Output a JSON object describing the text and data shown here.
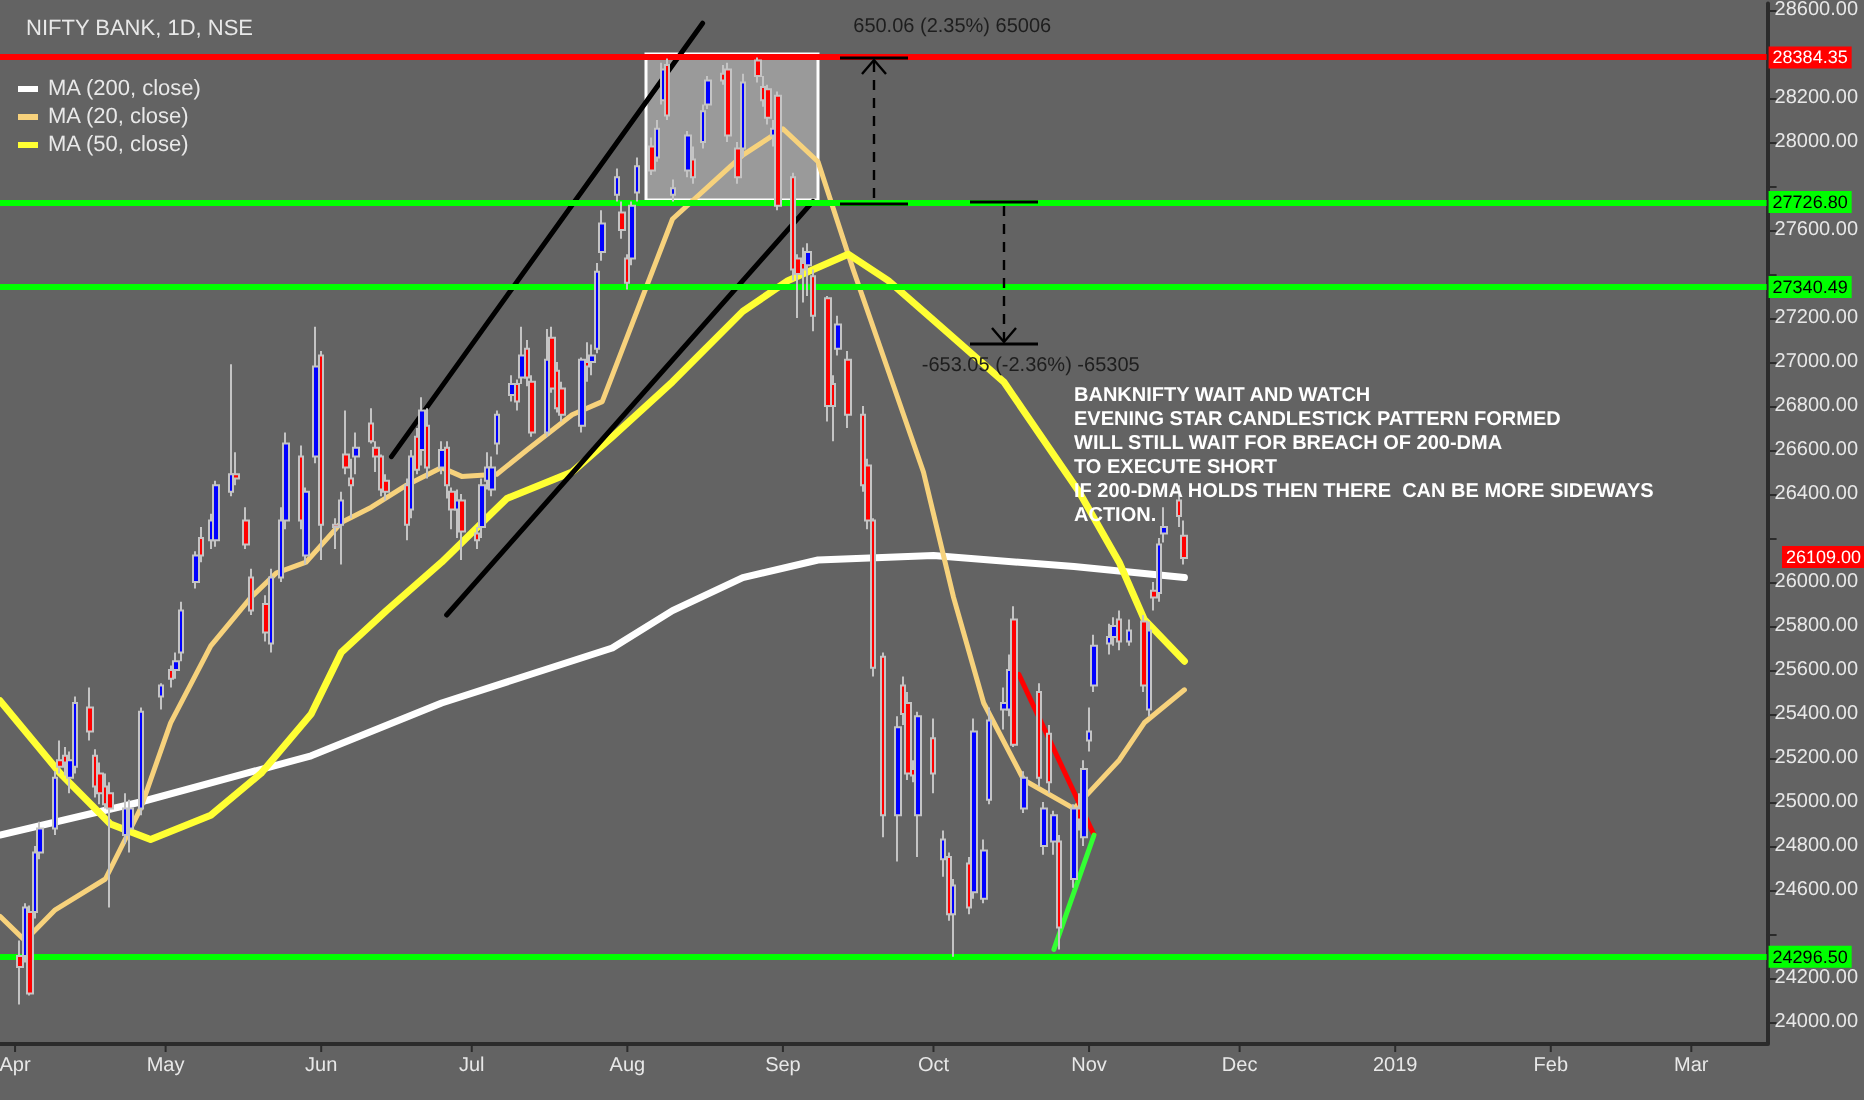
{
  "chart_data": {
    "type": "candlestick",
    "title": "NIFTY BANK, 1D, NSE",
    "legend": "top left",
    "marker": "none",
    "xlim": [
      "2018-03-29",
      "2019-03-16"
    ],
    "xticks": [
      {
        "value": "2018-04-01",
        "label": "Apr"
      },
      {
        "value": "2018-05-01",
        "label": "May"
      },
      {
        "value": "2018-06-01",
        "label": "Jun"
      },
      {
        "value": "2018-07-01",
        "label": "Jul"
      },
      {
        "value": "2018-08-01",
        "label": "Aug"
      },
      {
        "value": "2018-09-01",
        "label": "Sep"
      },
      {
        "value": "2018-10-01",
        "label": "Oct"
      },
      {
        "value": "2018-11-01",
        "label": "Nov"
      },
      {
        "value": "2018-12-01",
        "label": "Dec"
      },
      {
        "value": "2019-01-01",
        "label": "2019"
      },
      {
        "value": "2019-02-01",
        "label": "Feb"
      },
      {
        "value": "2019-03-01",
        "label": "Mar"
      }
    ],
    "ylim": [
      23900,
      28630
    ],
    "yticks": [
      {
        "value": 24000,
        "label": "24000.00"
      },
      {
        "value": 24200,
        "label": "24200.00"
      },
      {
        "value": 24400,
        "label": null
      },
      {
        "value": 24600,
        "label": "24600.00"
      },
      {
        "value": 24800,
        "label": "24800.00"
      },
      {
        "value": 25000,
        "label": "25000.00"
      },
      {
        "value": 25200,
        "label": "25200.00"
      },
      {
        "value": 25400,
        "label": "25400.00"
      },
      {
        "value": 25600,
        "label": "25600.00"
      },
      {
        "value": 25800,
        "label": "25800.00"
      },
      {
        "value": 26000,
        "label": "26000.00"
      },
      {
        "value": 26200,
        "label": null
      },
      {
        "value": 26400,
        "label": "26400.00"
      },
      {
        "value": 26600,
        "label": "26600.00"
      },
      {
        "value": 26800,
        "label": "26800.00"
      },
      {
        "value": 27000,
        "label": "27000.00"
      },
      {
        "value": 27200,
        "label": "27200.00"
      },
      {
        "value": 27400,
        "label": null
      },
      {
        "value": 27600,
        "label": "27600.00"
      },
      {
        "value": 27800,
        "label": null
      },
      {
        "value": 28000,
        "label": "28000.00"
      },
      {
        "value": 28200,
        "label": "28200.00"
      },
      {
        "value": 28600,
        "label": "28600.00"
      }
    ],
    "x": [
      "2018-04-02",
      "2018-04-03",
      "2018-04-04",
      "2018-04-05",
      "2018-04-06",
      "2018-04-09",
      "2018-04-10",
      "2018-04-11",
      "2018-04-12",
      "2018-04-13",
      "2018-04-16",
      "2018-04-17",
      "2018-04-18",
      "2018-04-19",
      "2018-04-20",
      "2018-04-23",
      "2018-04-24",
      "2018-04-26",
      "2018-04-30",
      "2018-05-02",
      "2018-05-03",
      "2018-05-04",
      "2018-05-07",
      "2018-05-08",
      "2018-05-10",
      "2018-05-11",
      "2018-05-14",
      "2018-05-15",
      "2018-05-17",
      "2018-05-18",
      "2018-05-21",
      "2018-05-22",
      "2018-05-24",
      "2018-05-25",
      "2018-05-28",
      "2018-05-29",
      "2018-05-31",
      "2018-06-01",
      "2018-06-04",
      "2018-06-05",
      "2018-06-06",
      "2018-06-07",
      "2018-06-08",
      "2018-06-11",
      "2018-06-12",
      "2018-06-13",
      "2018-06-14",
      "2018-06-18",
      "2018-06-19",
      "2018-06-20",
      "2018-06-21",
      "2018-06-22",
      "2018-06-25",
      "2018-06-26",
      "2018-06-27",
      "2018-06-28",
      "2018-06-29",
      "2018-07-02",
      "2018-07-03",
      "2018-07-04",
      "2018-07-05",
      "2018-07-06",
      "2018-07-09",
      "2018-07-10",
      "2018-07-11",
      "2018-07-12",
      "2018-07-13",
      "2018-07-16",
      "2018-07-17",
      "2018-07-18",
      "2018-07-19",
      "2018-07-23",
      "2018-07-24",
      "2018-07-25",
      "2018-07-26",
      "2018-07-27",
      "2018-07-30",
      "2018-07-31",
      "2018-08-01",
      "2018-08-02",
      "2018-08-03",
      "2018-08-06",
      "2018-08-07",
      "2018-08-08",
      "2018-08-09",
      "2018-08-10",
      "2018-08-13",
      "2018-08-14",
      "2018-08-16",
      "2018-08-17",
      "2018-08-20",
      "2018-08-21",
      "2018-08-23",
      "2018-08-24",
      "2018-08-27",
      "2018-08-28",
      "2018-08-29",
      "2018-08-30",
      "2018-08-31",
      "2018-09-03",
      "2018-09-04",
      "2018-09-05",
      "2018-09-06",
      "2018-09-07",
      "2018-09-10",
      "2018-09-11",
      "2018-09-12",
      "2018-09-14",
      "2018-09-17",
      "2018-09-18",
      "2018-09-19",
      "2018-09-21",
      "2018-09-24",
      "2018-09-25",
      "2018-09-26",
      "2018-09-27",
      "2018-09-28",
      "2018-10-01",
      "2018-10-03",
      "2018-10-04",
      "2018-10-05",
      "2018-10-08",
      "2018-10-09",
      "2018-10-11",
      "2018-10-12",
      "2018-10-15",
      "2018-10-16",
      "2018-10-17",
      "2018-10-19",
      "2018-10-22",
      "2018-10-23",
      "2018-10-24",
      "2018-10-25",
      "2018-10-26",
      "2018-10-29",
      "2018-10-30",
      "2018-10-31",
      "2018-11-01",
      "2018-11-02",
      "2018-11-05",
      "2018-11-06",
      "2018-11-07",
      "2018-11-09",
      "2018-11-12",
      "2018-11-13",
      "2018-11-14",
      "2018-11-15",
      "2018-11-16",
      "2018-11-19",
      "2018-11-20"
    ],
    "ohlc": [
      [
        24300,
        24370,
        24080,
        24250
      ],
      [
        24300,
        24540,
        24270,
        24520
      ],
      [
        24500,
        24530,
        24120,
        24130
      ],
      [
        24500,
        24800,
        24470,
        24770
      ],
      [
        24770,
        24910,
        24740,
        24880
      ],
      [
        24880,
        25140,
        24850,
        25110
      ],
      [
        25190,
        25280,
        25130,
        25160
      ],
      [
        25210,
        25250,
        25120,
        25180
      ],
      [
        25110,
        25230,
        25040,
        25190
      ],
      [
        25160,
        25480,
        25130,
        25450
      ],
      [
        25430,
        25520,
        25280,
        25320
      ],
      [
        25210,
        25240,
        25020,
        25070
      ],
      [
        25130,
        25180,
        24990,
        25040
      ],
      [
        25070,
        25130,
        24970,
        24990
      ],
      [
        25040,
        25090,
        24520,
        24970
      ],
      [
        24850,
        25040,
        24810,
        24970
      ],
      [
        24880,
        25010,
        24770,
        24970
      ],
      [
        24970,
        25430,
        24940,
        25410
      ],
      [
        25480,
        25540,
        25420,
        25530
      ],
      [
        25600,
        25620,
        25520,
        25560
      ],
      [
        25600,
        25680,
        25560,
        25640
      ],
      [
        25680,
        25910,
        25640,
        25870
      ],
      [
        26000,
        26140,
        25970,
        26120
      ],
      [
        26200,
        26250,
        26090,
        26120
      ],
      [
        26190,
        26310,
        26150,
        26280
      ],
      [
        26190,
        26460,
        26160,
        26440
      ],
      [
        26410,
        26990,
        26390,
        26490
      ],
      [
        26490,
        26590,
        26440,
        26470
      ],
      [
        26280,
        26340,
        26150,
        26170
      ],
      [
        26020,
        26060,
        25850,
        25870
      ],
      [
        25900,
        25940,
        25730,
        25770
      ],
      [
        25720,
        26060,
        25680,
        26020
      ],
      [
        26020,
        26340,
        26000,
        26280
      ],
      [
        26280,
        26680,
        26240,
        26630
      ],
      [
        26570,
        26620,
        26240,
        26280
      ],
      [
        26120,
        26430,
        26080,
        26410
      ],
      [
        26570,
        27160,
        26540,
        26980
      ],
      [
        27030,
        27050,
        26100,
        26260
      ],
      [
        26260,
        26290,
        26150,
        26250
      ],
      [
        26260,
        26410,
        26080,
        26370
      ],
      [
        26580,
        26780,
        26490,
        26520
      ],
      [
        26470,
        26560,
        26290,
        26440
      ],
      [
        26570,
        26680,
        26490,
        26610
      ],
      [
        26720,
        26790,
        26630,
        26640
      ],
      [
        26610,
        26640,
        26500,
        26570
      ],
      [
        26570,
        26580,
        26390,
        26420
      ],
      [
        26460,
        26490,
        26370,
        26410
      ],
      [
        26440,
        26470,
        26190,
        26260
      ],
      [
        26330,
        26600,
        26290,
        26570
      ],
      [
        26660,
        26700,
        26490,
        26510
      ],
      [
        26600,
        26840,
        26530,
        26780
      ],
      [
        26710,
        26790,
        26470,
        26520
      ],
      [
        26520,
        26640,
        26490,
        26600
      ],
      [
        26610,
        26640,
        26380,
        26440
      ],
      [
        26410,
        26430,
        26240,
        26330
      ],
      [
        26330,
        26420,
        26200,
        26370
      ],
      [
        26370,
        26400,
        26100,
        26230
      ],
      [
        26220,
        26250,
        26150,
        26190
      ],
      [
        26250,
        26470,
        26200,
        26440
      ],
      [
        26460,
        26590,
        26420,
        26520
      ],
      [
        26420,
        26570,
        26390,
        26520
      ],
      [
        26630,
        26780,
        26580,
        26760
      ],
      [
        26850,
        26940,
        26820,
        26900
      ],
      [
        26900,
        26920,
        26780,
        26820
      ],
      [
        26930,
        27160,
        26900,
        27030
      ],
      [
        27060,
        27100,
        26890,
        26930
      ],
      [
        26910,
        26940,
        26660,
        26680
      ],
      [
        26680,
        27150,
        26660,
        27010
      ],
      [
        27110,
        27160,
        26860,
        26880
      ],
      [
        26960,
        27000,
        26770,
        26790
      ],
      [
        26880,
        26910,
        26730,
        26760
      ],
      [
        26710,
        27020,
        26680,
        27010
      ],
      [
        27000,
        27090,
        26910,
        26980
      ],
      [
        27000,
        27080,
        26940,
        27030
      ],
      [
        27060,
        27450,
        27040,
        27410
      ],
      [
        27500,
        27690,
        27460,
        27630
      ],
      [
        27760,
        27880,
        27730,
        27840
      ],
      [
        27680,
        27730,
        27560,
        27600
      ],
      [
        27470,
        27490,
        27330,
        27360
      ],
      [
        27470,
        27730,
        27440,
        27710
      ],
      [
        27770,
        27930,
        27730,
        27890
      ],
      [
        27980,
        28020,
        27850,
        27870
      ],
      [
        27930,
        28100,
        27910,
        28060
      ],
      [
        28190,
        28360,
        28170,
        28330
      ],
      [
        28350,
        28380,
        28100,
        28120
      ],
      [
        27760,
        27830,
        27730,
        27790
      ],
      [
        27870,
        28050,
        27840,
        28030
      ],
      [
        27920,
        27980,
        27810,
        27840
      ],
      [
        28000,
        28170,
        27970,
        28140
      ],
      [
        28170,
        28300,
        28150,
        28280
      ],
      [
        28310,
        28350,
        28260,
        28280
      ],
      [
        28330,
        28360,
        28000,
        28030
      ],
      [
        27970,
        28000,
        27810,
        27840
      ],
      [
        27970,
        28310,
        27930,
        28270
      ],
      [
        28370,
        28384.35,
        28270,
        28300
      ],
      [
        28250,
        28300,
        28160,
        28190
      ],
      [
        28240,
        28260,
        28080,
        28110
      ],
      [
        28030,
        28100,
        27980,
        28060
      ],
      [
        28210,
        28230,
        27690,
        27710
      ],
      [
        27840,
        27860,
        27370,
        27420
      ],
      [
        27470,
        27490,
        27200,
        27400
      ],
      [
        27450,
        27520,
        27270,
        27420
      ],
      [
        27440,
        27540,
        27300,
        27500
      ],
      [
        27390,
        27420,
        27140,
        27210
      ],
      [
        27290,
        27300,
        26730,
        26800
      ],
      [
        26900,
        26940,
        26640,
        26800
      ],
      [
        27060,
        27210,
        27030,
        27170
      ],
      [
        27010,
        27050,
        26700,
        26760
      ],
      [
        26760,
        26800,
        26410,
        26440
      ],
      [
        26530,
        26560,
        26240,
        26280
      ],
      [
        26280,
        26290,
        25570,
        25610
      ],
      [
        25660,
        25680,
        24840,
        24940
      ],
      [
        24940,
        25390,
        24730,
        25340
      ],
      [
        25530,
        25570,
        25350,
        25400
      ],
      [
        25450,
        25500,
        25100,
        25130
      ],
      [
        25150,
        25190,
        25090,
        25120
      ],
      [
        24940,
        25410,
        24750,
        25390
      ],
      [
        25290,
        25380,
        25040,
        25130
      ],
      [
        24740,
        24870,
        24660,
        24830
      ],
      [
        24750,
        24770,
        24460,
        24490
      ],
      [
        24490,
        24650,
        24296.5,
        24620
      ],
      [
        24720,
        24750,
        24490,
        24520
      ],
      [
        24590,
        25380,
        24560,
        25320
      ],
      [
        24560,
        24830,
        24540,
        24780
      ],
      [
        25010,
        25430,
        24990,
        25370
      ],
      [
        25420,
        25520,
        25330,
        25450
      ],
      [
        25420,
        25670,
        25390,
        25600
      ],
      [
        25830,
        25890,
        25250,
        25260
      ],
      [
        24970,
        25140,
        24950,
        25110
      ],
      [
        25500,
        25540,
        25070,
        25110
      ],
      [
        24800,
        25000,
        24760,
        24970
      ],
      [
        25310,
        25350,
        25040,
        25090
      ],
      [
        24820,
        24960,
        24760,
        24940
      ],
      [
        24820,
        24850,
        24330,
        24430
      ],
      [
        24650,
        24990,
        24610,
        24970
      ],
      [
        24970,
        25040,
        24870,
        24920
      ],
      [
        24840,
        25190,
        24800,
        25150
      ],
      [
        25280,
        25430,
        25230,
        25320
      ],
      [
        25530,
        25760,
        25500,
        25710
      ],
      [
        25720,
        25810,
        25670,
        25750
      ],
      [
        25750,
        25840,
        25710,
        25800
      ],
      [
        25830,
        25870,
        25690,
        25730
      ],
      [
        25730,
        25830,
        25710,
        25780
      ],
      [
        25820,
        25850,
        25500,
        25530
      ],
      [
        25420,
        25820,
        25390,
        25780
      ],
      [
        25960,
        26000,
        25870,
        25930
      ],
      [
        25950,
        26200,
        25910,
        26170
      ],
      [
        26220,
        26340,
        26180,
        26250
      ],
      [
        26370,
        26440,
        26250,
        26300
      ],
      [
        26210,
        26280,
        26080,
        26109
      ]
    ],
    "colors": [
      "#ff0000",
      "#0000ff",
      "#ff0000",
      "#0000ff",
      "#0000ff",
      "#0000ff",
      "#ff0000",
      "#ff0000",
      "#0000ff",
      "#0000ff",
      "#ff0000",
      "#ff0000",
      "#ff0000",
      "#ff0000",
      "#ff0000",
      "#0000ff",
      "#0000ff",
      "#0000ff",
      "#0000ff",
      "#ff0000",
      "#0000ff",
      "#0000ff",
      "#0000ff",
      "#ff0000",
      "#0000ff",
      "#0000ff",
      "#0000ff",
      "#ff0000",
      "#ff0000",
      "#ff0000",
      "#ff0000",
      "#0000ff",
      "#0000ff",
      "#0000ff",
      "#ff0000",
      "#0000ff",
      "#0000ff",
      "#ff0000",
      "#ff0000",
      "#0000ff",
      "#ff0000",
      "#ff0000",
      "#0000ff",
      "#ff0000",
      "#ff0000",
      "#ff0000",
      "#ff0000",
      "#ff0000",
      "#0000ff",
      "#ff0000",
      "#0000ff",
      "#ff0000",
      "#0000ff",
      "#ff0000",
      "#ff0000",
      "#0000ff",
      "#ff0000",
      "#ff0000",
      "#0000ff",
      "#0000ff",
      "#0000ff",
      "#0000ff",
      "#0000ff",
      "#ff0000",
      "#0000ff",
      "#ff0000",
      "#ff0000",
      "#0000ff",
      "#ff0000",
      "#ff0000",
      "#ff0000",
      "#0000ff",
      "#ff0000",
      "#0000ff",
      "#0000ff",
      "#0000ff",
      "#0000ff",
      "#ff0000",
      "#ff0000",
      "#0000ff",
      "#0000ff",
      "#ff0000",
      "#0000ff",
      "#0000ff",
      "#ff0000",
      "#0000ff",
      "#0000ff",
      "#ff0000",
      "#0000ff",
      "#0000ff",
      "#ff0000",
      "#ff0000",
      "#ff0000",
      "#0000ff",
      "#ff0000",
      "#ff0000",
      "#ff0000",
      "#0000ff",
      "#ff0000",
      "#ff0000",
      "#ff0000",
      "#ff0000",
      "#0000ff",
      "#ff0000",
      "#ff0000",
      "#ff0000",
      "#0000ff",
      "#ff0000",
      "#ff0000",
      "#ff0000",
      "#ff0000",
      "#ff0000",
      "#0000ff",
      "#ff0000",
      "#ff0000",
      "#ff0000",
      "#0000ff",
      "#ff0000",
      "#0000ff",
      "#ff0000",
      "#0000ff",
      "#ff0000",
      "#0000ff",
      "#0000ff",
      "#0000ff",
      "#0000ff",
      "#0000ff",
      "#ff0000",
      "#0000ff",
      "#ff0000",
      "#0000ff",
      "#ff0000",
      "#0000ff",
      "#ff0000",
      "#0000ff",
      "#ff0000",
      "#0000ff",
      "#0000ff",
      "#0000ff",
      "#0000ff",
      "#0000ff",
      "#ff0000",
      "#0000ff",
      "#ff0000",
      "#0000ff",
      "#ff0000",
      "#0000ff",
      "#0000ff",
      "#ff0000",
      "#ff0000"
    ],
    "series": [
      {
        "type": "line",
        "name": "MA (200, close)",
        "color": "#ffffff",
        "x": [
          "2018-03-29",
          "2018-04-26",
          "2018-05-30",
          "2018-06-25",
          "2018-07-29",
          "2018-08-10",
          "2018-08-24",
          "2018-09-08",
          "2018-10-01",
          "2018-10-29",
          "2018-11-20"
        ],
        "values": [
          24850,
          25000,
          25210,
          25450,
          25700,
          25870,
          26020,
          26100,
          26120,
          26070,
          26020
        ]
      },
      {
        "type": "line",
        "name": "MA (20, close)",
        "color": "#f7d27c",
        "x": [
          "2018-03-29",
          "2018-04-03",
          "2018-04-09",
          "2018-04-19",
          "2018-04-26",
          "2018-05-02",
          "2018-05-10",
          "2018-05-18",
          "2018-05-23",
          "2018-05-29",
          "2018-06-05",
          "2018-06-11",
          "2018-06-18",
          "2018-06-25",
          "2018-06-29",
          "2018-07-06",
          "2018-07-12",
          "2018-07-21",
          "2018-07-27",
          "2018-08-10",
          "2018-08-24",
          "2018-09-01",
          "2018-09-08",
          "2018-09-15",
          "2018-09-22",
          "2018-09-29",
          "2018-10-05",
          "2018-10-11",
          "2018-10-19",
          "2018-10-29",
          "2018-11-07",
          "2018-11-12",
          "2018-11-20"
        ],
        "values": [
          24480,
          24370,
          24510,
          24650,
          24970,
          25360,
          25710,
          25930,
          26040,
          26090,
          26270,
          26340,
          26440,
          26520,
          26480,
          26490,
          26600,
          26760,
          26820,
          27650,
          27940,
          28060,
          27910,
          27420,
          26960,
          26500,
          25930,
          25450,
          25100,
          24970,
          25190,
          25360,
          25510
        ]
      },
      {
        "type": "line",
        "name": "MA (50, close)",
        "color": "#ffff33",
        "x": [
          "2018-03-29",
          "2018-04-10",
          "2018-04-20",
          "2018-04-28",
          "2018-05-10",
          "2018-05-20",
          "2018-05-30",
          "2018-06-05",
          "2018-06-14",
          "2018-06-25",
          "2018-07-08",
          "2018-07-21",
          "2018-07-29",
          "2018-08-10",
          "2018-08-24",
          "2018-09-02",
          "2018-09-14",
          "2018-09-22",
          "2018-10-01",
          "2018-10-15",
          "2018-10-30",
          "2018-11-07",
          "2018-11-12",
          "2018-11-20"
        ],
        "values": [
          25460,
          25130,
          24900,
          24830,
          24940,
          25130,
          25400,
          25680,
          25870,
          26090,
          26380,
          26500,
          26660,
          26910,
          27230,
          27370,
          27490,
          27370,
          27190,
          26910,
          26410,
          26090,
          25830,
          25640
        ]
      },
      {
        "type": "line",
        "color": "#000000",
        "x": [
          "2018-06-15",
          "2018-08-16"
        ],
        "values": [
          26570,
          28540
        ]
      },
      {
        "type": "line",
        "color": "#000000",
        "x": [
          "2018-06-26",
          "2018-09-07"
        ],
        "values": [
          25850,
          27730
        ]
      },
      {
        "type": "line",
        "color": "#ff0000",
        "x": [
          "2018-10-18",
          "2018-11-02"
        ],
        "values": [
          25580,
          24850
        ]
      },
      {
        "type": "line",
        "color": "#33ff33",
        "x": [
          "2018-10-25",
          "2018-11-02"
        ],
        "values": [
          24330,
          24850
        ]
      }
    ],
    "ref_lines": [
      {
        "axis": "y",
        "value": 28384.35,
        "label": "28384.35",
        "color": "#ff0000"
      },
      {
        "axis": "y",
        "value": 27726.8,
        "label": "27726.80",
        "color": "#00ff00"
      },
      {
        "axis": "y",
        "value": 27340.49,
        "label": "27340.49",
        "color": "#00ff00"
      },
      {
        "axis": "y",
        "value": 24296.5,
        "label": "24296.50",
        "color": "#00ff00"
      }
    ],
    "annotations": [
      {
        "text": "650.06 (2.35%) 65006",
        "x": "2018-09-19",
        "y": 28384.35
      },
      {
        "text": "-653.05 (-2.36%) -65305",
        "x": "2018-10-15",
        "y": 27726.8
      },
      "BANKNIFTY WAIT AND WATCH\nEVENING STAR CANDLESTICK PATTERN FORMED\nWILL STILL WAIT FOR BREACH OF 200-DMA\nTO EXECUTE SHORT\nIF 200-DMA HOLDS THEN THERE  CAN BE MORE SIDEWAYS\nACTION.",
      "26109.00"
    ]
  }
}
